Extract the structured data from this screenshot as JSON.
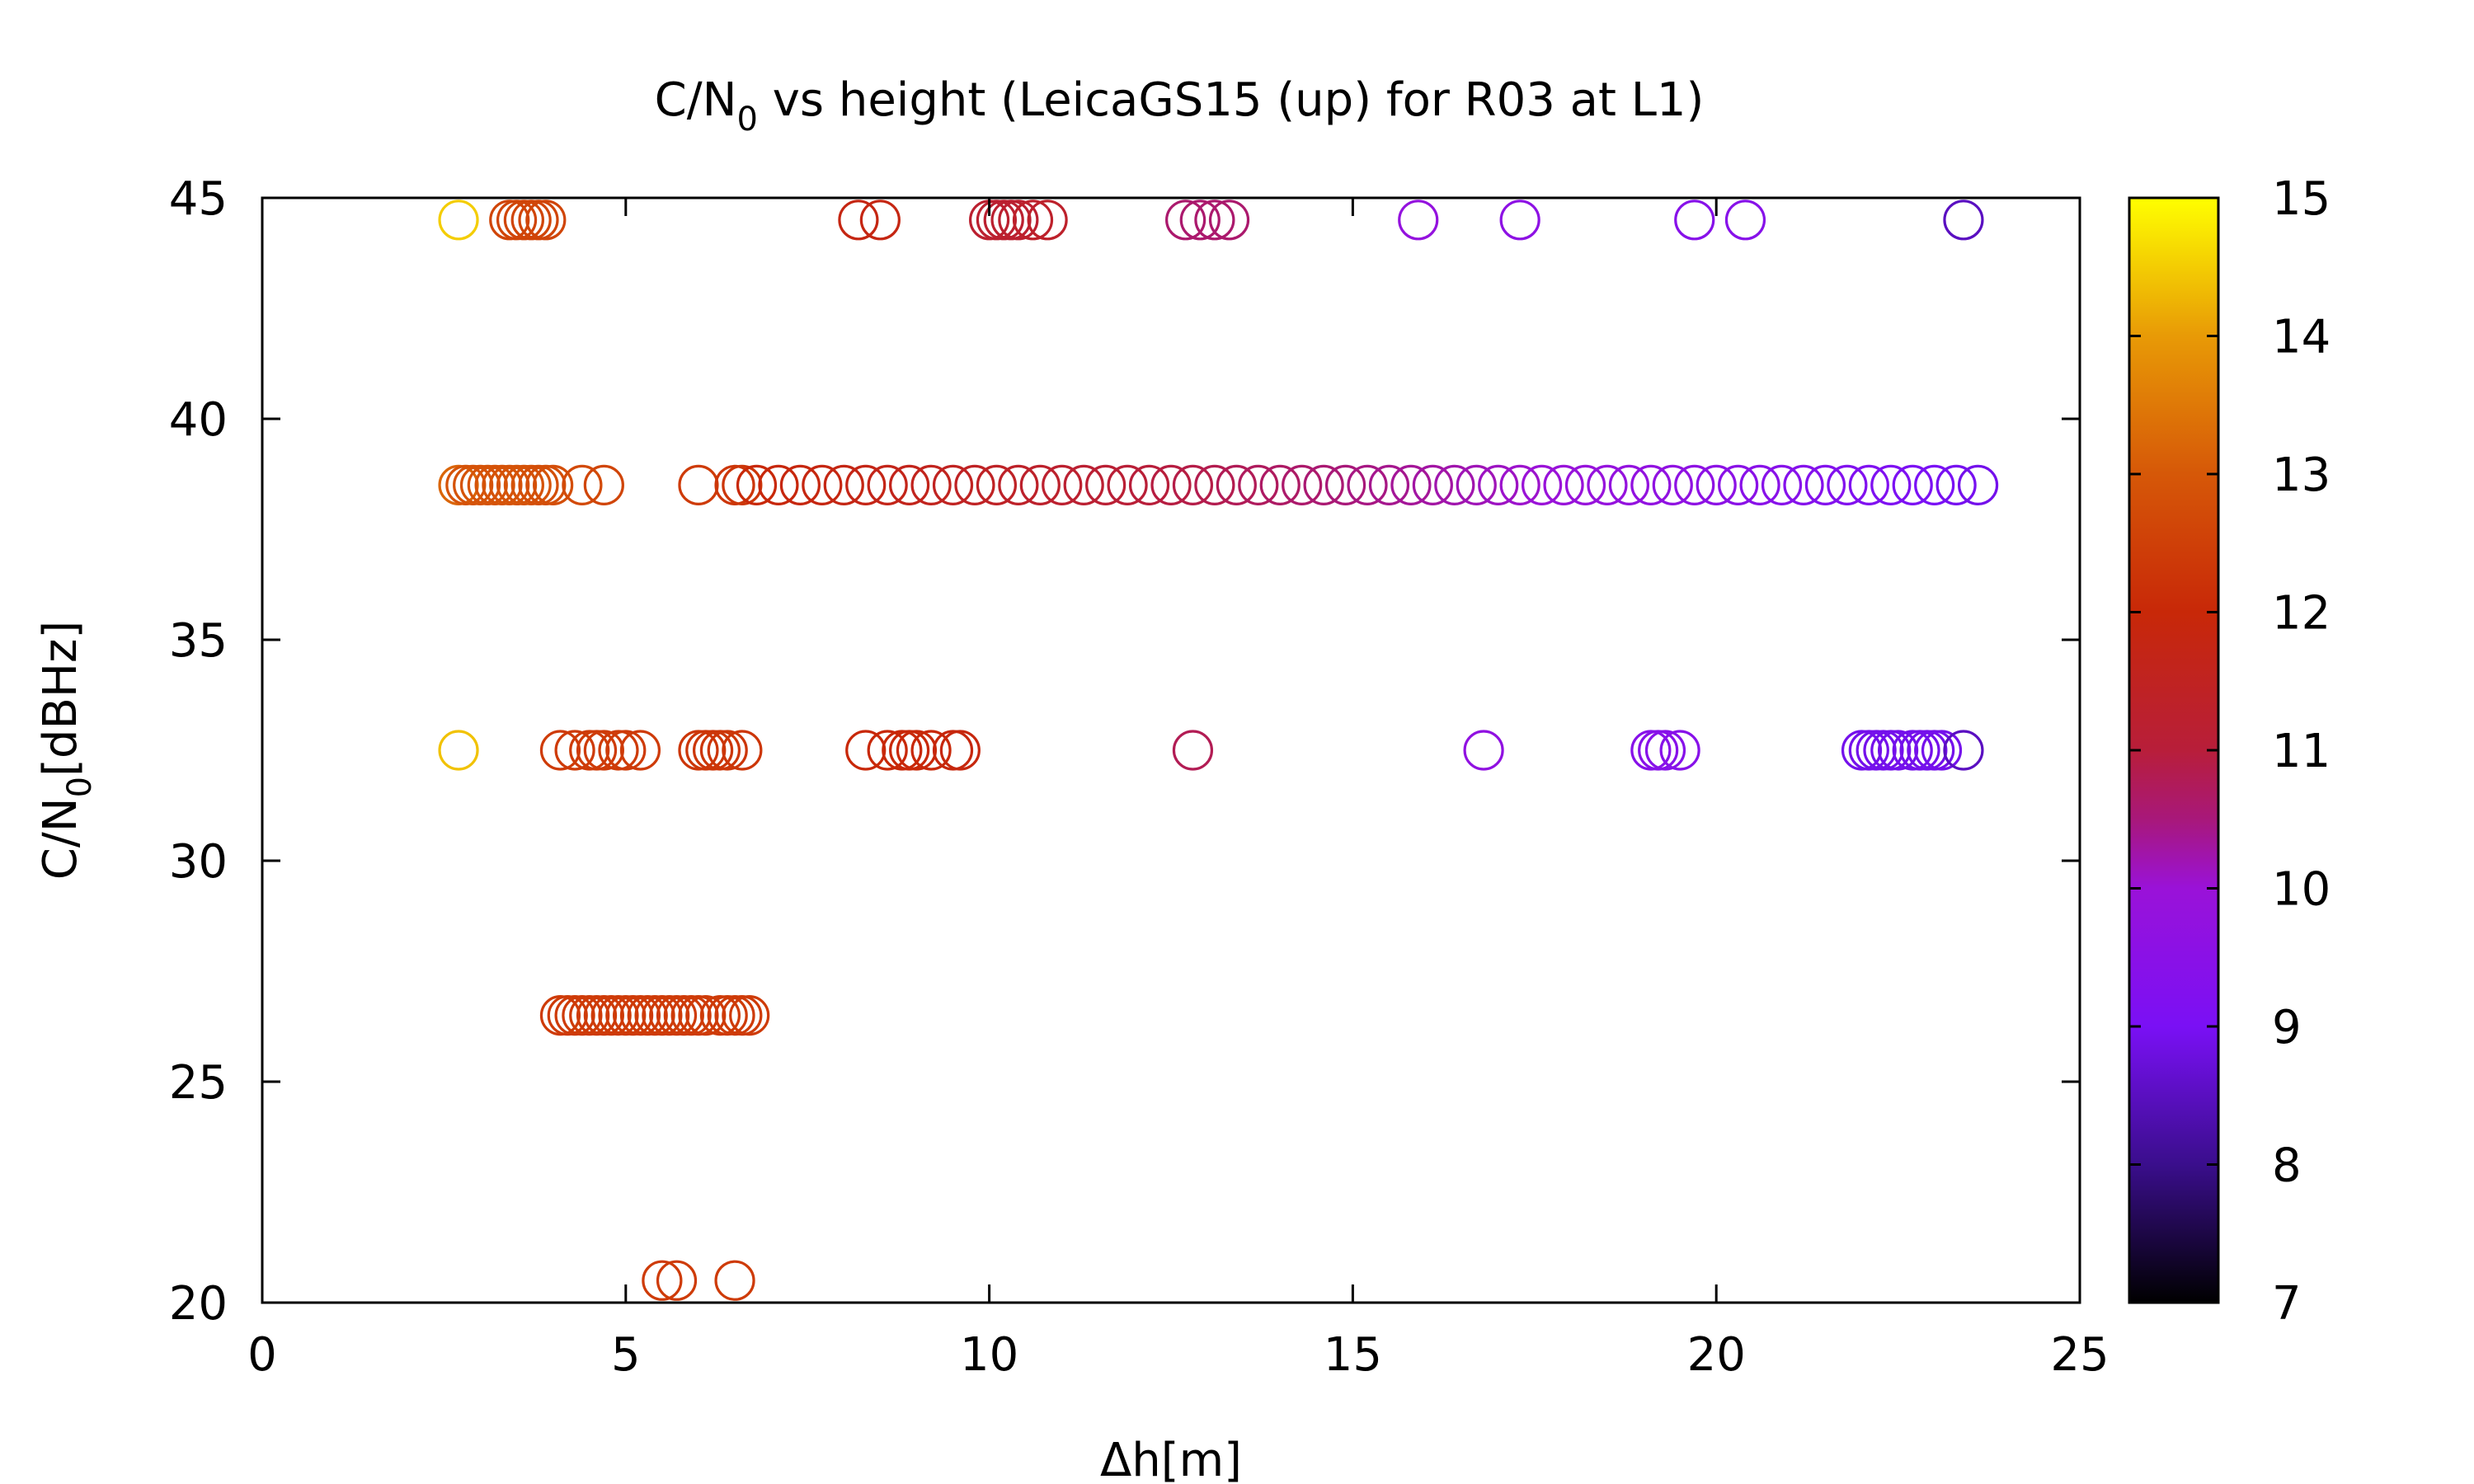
{
  "chart_data": {
    "type": "scatter",
    "title": {
      "main": "C/N",
      "sub": "0",
      "rest": " vs height (LeicaGS15 (up) for R03 at L1)"
    },
    "xlabel": "Δh[m]",
    "ylabel": {
      "main": "C/N",
      "sub": "0",
      "rest": "[dBHz]"
    },
    "xlim": [
      0,
      25
    ],
    "ylim": [
      20,
      45
    ],
    "xticks": [
      0,
      5,
      10,
      15,
      20,
      25
    ],
    "yticks": [
      20,
      25,
      30,
      35,
      40,
      45
    ],
    "grid": false,
    "legend": "none",
    "marker": "open-circle",
    "colorbar": {
      "range": [
        7,
        15
      ],
      "ticks": [
        7,
        8,
        9,
        10,
        11,
        12,
        13,
        14,
        15
      ],
      "palette": "black-blue-purple-red-orange-yellow",
      "stops": [
        {
          "v": 7,
          "color": "#000000"
        },
        {
          "v": 8,
          "color": "#3a0e8c"
        },
        {
          "v": 9,
          "color": "#7a10f5"
        },
        {
          "v": 10,
          "color": "#9a12d8"
        },
        {
          "v": 10.5,
          "color": "#a8187a"
        },
        {
          "v": 11,
          "color": "#b81e3a"
        },
        {
          "v": 12,
          "color": "#c82808"
        },
        {
          "v": 13,
          "color": "#d65808"
        },
        {
          "v": 14,
          "color": "#e89a06"
        },
        {
          "v": 15,
          "color": "#ffff00"
        }
      ]
    },
    "series": [
      {
        "c_n0": 44.5,
        "points": [
          [
            2.7,
            14.5
          ],
          [
            3.4,
            12.6
          ],
          [
            3.5,
            12.6
          ],
          [
            3.6,
            12.6
          ],
          [
            3.7,
            12.6
          ],
          [
            3.8,
            12.6
          ],
          [
            3.9,
            12.6
          ],
          [
            8.2,
            11.8
          ],
          [
            8.5,
            11.8
          ],
          [
            10.0,
            11.2
          ],
          [
            10.1,
            11.2
          ],
          [
            10.2,
            11.2
          ],
          [
            10.3,
            11.2
          ],
          [
            10.4,
            11.2
          ],
          [
            10.6,
            11.3
          ],
          [
            10.8,
            11.3
          ],
          [
            12.7,
            10.6
          ],
          [
            12.9,
            10.6
          ],
          [
            13.1,
            10.6
          ],
          [
            13.3,
            10.6
          ],
          [
            15.9,
            9.8
          ],
          [
            17.3,
            9.6
          ],
          [
            19.7,
            9.4
          ],
          [
            20.4,
            9.4
          ],
          [
            23.4,
            8.5
          ]
        ]
      },
      {
        "c_n0": 38.5,
        "points": [
          [
            2.7,
            13.2
          ],
          [
            2.8,
            12.9
          ],
          [
            2.9,
            12.9
          ],
          [
            3.0,
            12.9
          ],
          [
            3.1,
            12.9
          ],
          [
            3.2,
            12.9
          ],
          [
            3.3,
            12.9
          ],
          [
            3.4,
            12.9
          ],
          [
            3.5,
            12.9
          ],
          [
            3.6,
            12.9
          ],
          [
            3.7,
            12.9
          ],
          [
            3.8,
            12.8
          ],
          [
            3.9,
            12.8
          ],
          [
            4.0,
            12.8
          ],
          [
            4.4,
            12.7
          ],
          [
            4.7,
            12.6
          ],
          [
            6.0,
            12.4
          ],
          [
            6.5,
            12.3
          ],
          [
            6.6,
            12.3
          ]
        ],
        "continuous": {
          "from": 6.8,
          "to": 23.5,
          "step": 0.3,
          "cstart": 12.0,
          "cend": 8.9
        }
      },
      {
        "c_n0": 32.5,
        "points": [
          [
            2.7,
            14.4
          ],
          [
            4.1,
            12.4
          ],
          [
            4.3,
            12.4
          ],
          [
            4.5,
            12.4
          ],
          [
            4.6,
            12.4
          ],
          [
            4.7,
            12.4
          ],
          [
            4.9,
            12.4
          ],
          [
            5.0,
            12.4
          ],
          [
            5.2,
            12.4
          ],
          [
            6.0,
            12.3
          ],
          [
            6.1,
            12.3
          ],
          [
            6.2,
            12.3
          ],
          [
            6.3,
            12.3
          ],
          [
            6.4,
            12.3
          ],
          [
            6.6,
            12.3
          ],
          [
            8.3,
            12.0
          ],
          [
            8.6,
            12.0
          ],
          [
            8.8,
            12.0
          ],
          [
            8.9,
            12.0
          ],
          [
            9.0,
            12.0
          ],
          [
            9.2,
            12.0
          ],
          [
            9.5,
            11.9
          ],
          [
            9.6,
            11.9
          ],
          [
            12.8,
            10.8
          ],
          [
            16.8,
            9.7
          ],
          [
            19.1,
            9.4
          ],
          [
            19.2,
            9.4
          ],
          [
            19.3,
            9.4
          ],
          [
            19.5,
            9.4
          ],
          [
            22.0,
            8.9
          ],
          [
            22.1,
            8.9
          ],
          [
            22.2,
            8.9
          ],
          [
            22.3,
            8.9
          ],
          [
            22.4,
            8.9
          ],
          [
            22.5,
            8.9
          ],
          [
            22.7,
            8.9
          ],
          [
            22.8,
            8.9
          ],
          [
            22.9,
            8.9
          ],
          [
            23.0,
            8.9
          ],
          [
            23.1,
            8.9
          ],
          [
            23.4,
            8.5
          ]
        ]
      },
      {
        "c_n0": 26.5,
        "points": [
          [
            4.1,
            12.4
          ],
          [
            4.2,
            12.4
          ],
          [
            4.3,
            12.4
          ],
          [
            4.4,
            12.4
          ],
          [
            4.5,
            12.4
          ],
          [
            4.6,
            12.4
          ],
          [
            4.7,
            12.4
          ],
          [
            4.8,
            12.4
          ],
          [
            4.9,
            12.4
          ],
          [
            5.0,
            12.4
          ],
          [
            5.1,
            12.4
          ],
          [
            5.2,
            12.4
          ],
          [
            5.3,
            12.4
          ],
          [
            5.4,
            12.4
          ],
          [
            5.5,
            12.4
          ],
          [
            5.6,
            12.4
          ],
          [
            5.7,
            12.4
          ],
          [
            5.8,
            12.4
          ],
          [
            5.9,
            12.4
          ],
          [
            6.0,
            12.4
          ],
          [
            6.1,
            12.4
          ],
          [
            6.3,
            12.4
          ],
          [
            6.4,
            12.4
          ],
          [
            6.5,
            12.4
          ],
          [
            6.6,
            12.4
          ],
          [
            6.7,
            12.4
          ]
        ]
      },
      {
        "c_n0": 20.5,
        "points": [
          [
            5.5,
            12.4
          ],
          [
            5.7,
            12.4
          ],
          [
            6.5,
            12.4
          ]
        ]
      }
    ]
  }
}
